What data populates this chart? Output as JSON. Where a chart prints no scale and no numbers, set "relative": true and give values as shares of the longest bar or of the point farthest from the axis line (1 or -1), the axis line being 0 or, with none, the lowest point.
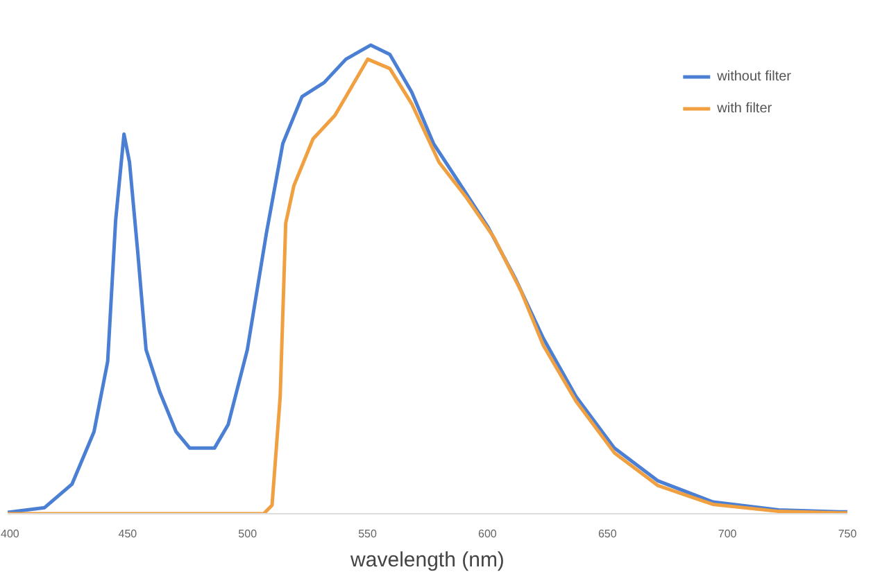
{
  "chart_data": {
    "type": "line",
    "xlabel": "wavelength (nm)",
    "relative": true,
    "legend": "top right",
    "grid": false,
    "xlim": [
      400,
      750
    ],
    "xticks": [
      400,
      450,
      500,
      550,
      600,
      650,
      700,
      750
    ],
    "series": [
      {
        "name": "without filter",
        "color": "#4a7fd4",
        "x": [
          400,
          415.4,
          426.8,
          436,
          441.7,
          445,
          448.5,
          450.8,
          454.2,
          457.7,
          463.4,
          470.2,
          475.9,
          486.2,
          491.9,
          499.9,
          507.9,
          514.7,
          522.7,
          531.9,
          541,
          551.3,
          559.3,
          568.4,
          577.5,
          589,
          600.4,
          611.8,
          623.2,
          636.9,
          652.9,
          671.1,
          694,
          721.4,
          746.5,
          750
        ],
        "values": [
          0.003,
          0.013,
          0.063,
          0.175,
          0.325,
          0.625,
          0.81,
          0.75,
          0.56,
          0.35,
          0.26,
          0.175,
          0.14,
          0.14,
          0.19,
          0.35,
          0.6,
          0.79,
          0.89,
          0.92,
          0.97,
          1.0,
          0.98,
          0.9,
          0.79,
          0.7,
          0.61,
          0.5,
          0.375,
          0.25,
          0.14,
          0.07,
          0.025,
          0.008,
          0.004,
          0.004
        ]
      },
      {
        "name": "with filter",
        "color": "#f0a040",
        "x": [
          400,
          506.7,
          510.2,
          513.6,
          515.9,
          519.3,
          527.3,
          536.4,
          550.1,
          559.3,
          568.4,
          579.8,
          591.2,
          602.6,
          614,
          623.2,
          636.9,
          652.9,
          671.1,
          694,
          721.4,
          746.5,
          750
        ],
        "values": [
          0,
          0,
          0.018,
          0.25,
          0.62,
          0.7,
          0.8,
          0.85,
          0.97,
          0.95,
          0.875,
          0.75,
          0.675,
          0.59,
          0.475,
          0.36,
          0.24,
          0.13,
          0.06,
          0.02,
          0.005,
          0.002,
          0.002
        ]
      }
    ]
  }
}
